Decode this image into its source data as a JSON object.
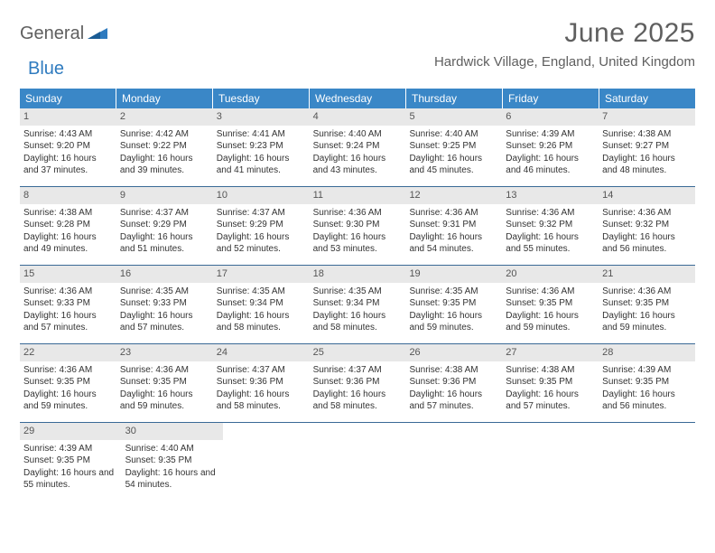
{
  "logo": {
    "word1": "General",
    "word2": "Blue"
  },
  "title": "June 2025",
  "location": "Hardwick Village, England, United Kingdom",
  "colors": {
    "header_bg": "#3a87c7",
    "header_text": "#ffffff",
    "band_bg": "#e8e8e8",
    "row_border": "#3a6a96",
    "logo_gray": "#5f5f5f",
    "logo_blue": "#2f7bbf"
  },
  "day_headers": [
    "Sunday",
    "Monday",
    "Tuesday",
    "Wednesday",
    "Thursday",
    "Friday",
    "Saturday"
  ],
  "weeks": [
    [
      {
        "n": "1",
        "sr": "4:43 AM",
        "ss": "9:20 PM",
        "dl": "16 hours and 37 minutes."
      },
      {
        "n": "2",
        "sr": "4:42 AM",
        "ss": "9:22 PM",
        "dl": "16 hours and 39 minutes."
      },
      {
        "n": "3",
        "sr": "4:41 AM",
        "ss": "9:23 PM",
        "dl": "16 hours and 41 minutes."
      },
      {
        "n": "4",
        "sr": "4:40 AM",
        "ss": "9:24 PM",
        "dl": "16 hours and 43 minutes."
      },
      {
        "n": "5",
        "sr": "4:40 AM",
        "ss": "9:25 PM",
        "dl": "16 hours and 45 minutes."
      },
      {
        "n": "6",
        "sr": "4:39 AM",
        "ss": "9:26 PM",
        "dl": "16 hours and 46 minutes."
      },
      {
        "n": "7",
        "sr": "4:38 AM",
        "ss": "9:27 PM",
        "dl": "16 hours and 48 minutes."
      }
    ],
    [
      {
        "n": "8",
        "sr": "4:38 AM",
        "ss": "9:28 PM",
        "dl": "16 hours and 49 minutes."
      },
      {
        "n": "9",
        "sr": "4:37 AM",
        "ss": "9:29 PM",
        "dl": "16 hours and 51 minutes."
      },
      {
        "n": "10",
        "sr": "4:37 AM",
        "ss": "9:29 PM",
        "dl": "16 hours and 52 minutes."
      },
      {
        "n": "11",
        "sr": "4:36 AM",
        "ss": "9:30 PM",
        "dl": "16 hours and 53 minutes."
      },
      {
        "n": "12",
        "sr": "4:36 AM",
        "ss": "9:31 PM",
        "dl": "16 hours and 54 minutes."
      },
      {
        "n": "13",
        "sr": "4:36 AM",
        "ss": "9:32 PM",
        "dl": "16 hours and 55 minutes."
      },
      {
        "n": "14",
        "sr": "4:36 AM",
        "ss": "9:32 PM",
        "dl": "16 hours and 56 minutes."
      }
    ],
    [
      {
        "n": "15",
        "sr": "4:36 AM",
        "ss": "9:33 PM",
        "dl": "16 hours and 57 minutes."
      },
      {
        "n": "16",
        "sr": "4:35 AM",
        "ss": "9:33 PM",
        "dl": "16 hours and 57 minutes."
      },
      {
        "n": "17",
        "sr": "4:35 AM",
        "ss": "9:34 PM",
        "dl": "16 hours and 58 minutes."
      },
      {
        "n": "18",
        "sr": "4:35 AM",
        "ss": "9:34 PM",
        "dl": "16 hours and 58 minutes."
      },
      {
        "n": "19",
        "sr": "4:35 AM",
        "ss": "9:35 PM",
        "dl": "16 hours and 59 minutes."
      },
      {
        "n": "20",
        "sr": "4:36 AM",
        "ss": "9:35 PM",
        "dl": "16 hours and 59 minutes."
      },
      {
        "n": "21",
        "sr": "4:36 AM",
        "ss": "9:35 PM",
        "dl": "16 hours and 59 minutes."
      }
    ],
    [
      {
        "n": "22",
        "sr": "4:36 AM",
        "ss": "9:35 PM",
        "dl": "16 hours and 59 minutes."
      },
      {
        "n": "23",
        "sr": "4:36 AM",
        "ss": "9:35 PM",
        "dl": "16 hours and 59 minutes."
      },
      {
        "n": "24",
        "sr": "4:37 AM",
        "ss": "9:36 PM",
        "dl": "16 hours and 58 minutes."
      },
      {
        "n": "25",
        "sr": "4:37 AM",
        "ss": "9:36 PM",
        "dl": "16 hours and 58 minutes."
      },
      {
        "n": "26",
        "sr": "4:38 AM",
        "ss": "9:36 PM",
        "dl": "16 hours and 57 minutes."
      },
      {
        "n": "27",
        "sr": "4:38 AM",
        "ss": "9:35 PM",
        "dl": "16 hours and 57 minutes."
      },
      {
        "n": "28",
        "sr": "4:39 AM",
        "ss": "9:35 PM",
        "dl": "16 hours and 56 minutes."
      }
    ],
    [
      {
        "n": "29",
        "sr": "4:39 AM",
        "ss": "9:35 PM",
        "dl": "16 hours and 55 minutes."
      },
      {
        "n": "30",
        "sr": "4:40 AM",
        "ss": "9:35 PM",
        "dl": "16 hours and 54 minutes."
      },
      null,
      null,
      null,
      null,
      null
    ]
  ],
  "labels": {
    "sunrise": "Sunrise:",
    "sunset": "Sunset:",
    "daylight": "Daylight:"
  }
}
